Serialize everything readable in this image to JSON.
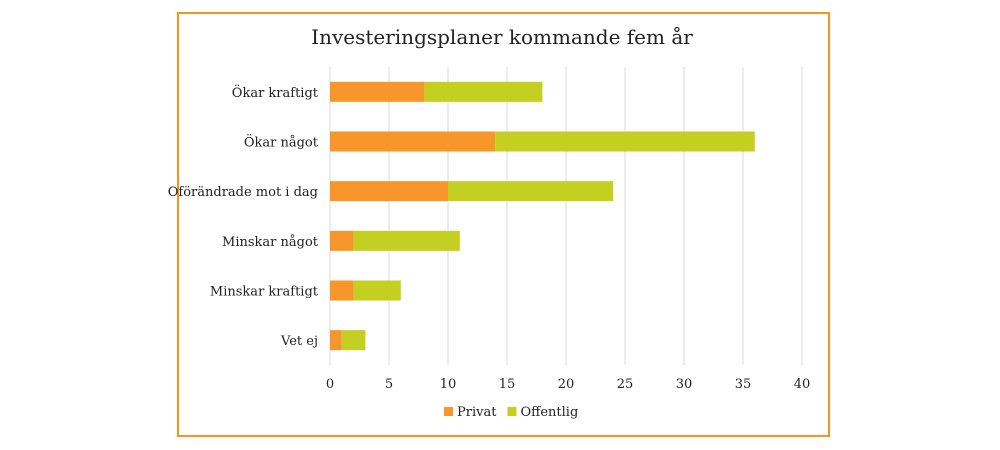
{
  "chart_data": {
    "type": "bar",
    "orientation": "horizontal",
    "stacked": true,
    "title": "Investeringsplaner kommande fem år",
    "categories": [
      "Ökar kraftigt",
      "Ökar något",
      "Oförändrade mot i dag",
      "Minskar något",
      "Minskar kraftigt",
      "Vet ej"
    ],
    "series": [
      {
        "name": "Privat",
        "color": "#f7962a",
        "values": [
          8,
          14,
          10,
          2,
          2,
          1
        ]
      },
      {
        "name": "Offentlig",
        "color": "#c3cf21",
        "values": [
          10,
          22,
          14,
          9,
          4,
          2
        ]
      }
    ],
    "xlim": [
      0,
      40
    ],
    "xticks": [
      "0",
      "5",
      "10",
      "15",
      "20",
      "25",
      "30",
      "35",
      "40"
    ],
    "grid": true,
    "legend": "bottom",
    "border_color": "#f7941d"
  }
}
